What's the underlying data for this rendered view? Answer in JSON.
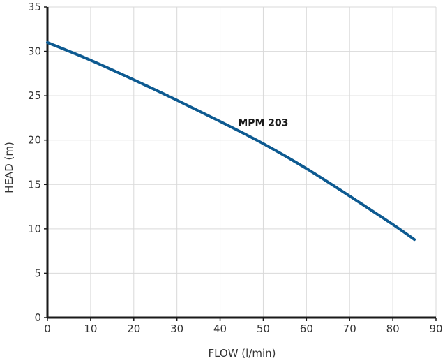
{
  "chart_data": {
    "type": "line",
    "xlabel": "FLOW (l/min)",
    "ylabel": "HEAD (m)",
    "xlim": [
      0,
      90
    ],
    "ylim": [
      0,
      35
    ],
    "xticks": [
      0,
      10,
      20,
      30,
      40,
      50,
      60,
      70,
      80,
      90
    ],
    "yticks": [
      0,
      5,
      10,
      15,
      20,
      25,
      30,
      35
    ],
    "grid": true,
    "series": [
      {
        "name": "MPM 203",
        "color": "#0d5a91",
        "x": [
          0,
          10,
          20,
          30,
          40,
          50,
          60,
          70,
          80,
          85
        ],
        "y": [
          31.0,
          29.0,
          26.8,
          24.5,
          22.1,
          19.6,
          16.8,
          13.7,
          10.5,
          8.8
        ]
      }
    ]
  }
}
